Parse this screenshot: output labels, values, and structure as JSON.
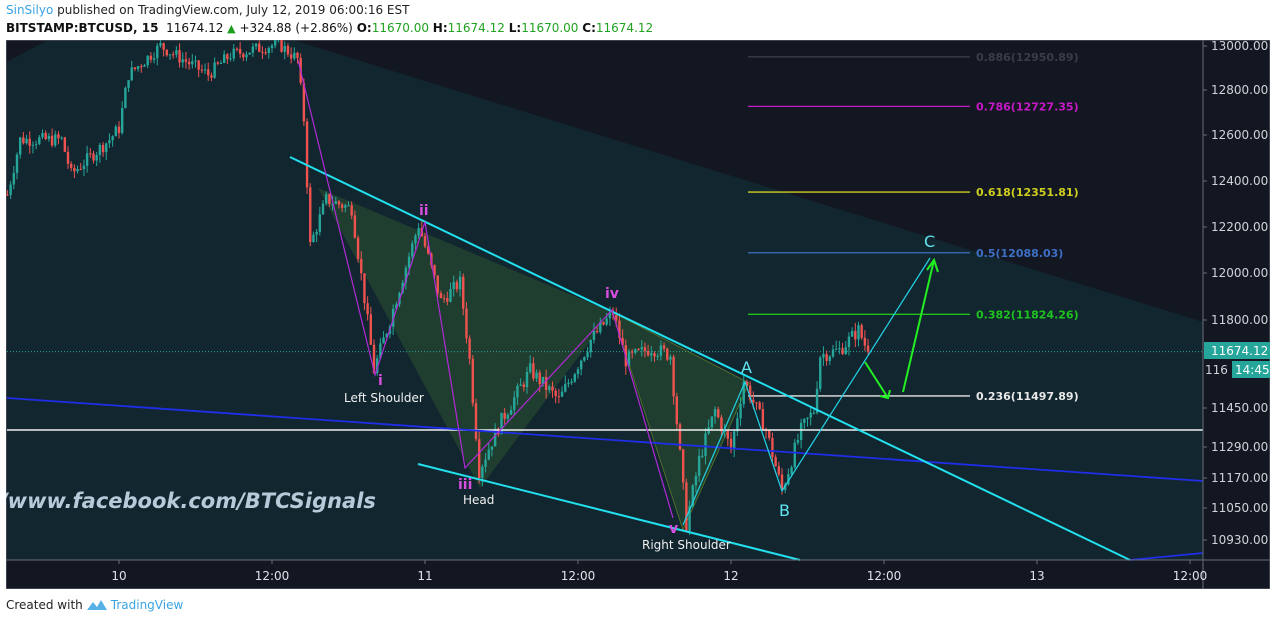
{
  "header": {
    "author": "SinSilyo",
    "published_text": "published on TradingView.com, July 12, 2019 06:00:16 EST",
    "symbol": "BITSTAMP:BTCUSD, 15",
    "last": "11674.12",
    "change": "+324.88 (+2.86%)",
    "o_label": "O:",
    "o": "11670.00",
    "h_label": "H:",
    "h": "11674.12",
    "l_label": "L:",
    "l": "11670.00",
    "c_label": "C:",
    "c": "11674.12",
    "change_icon": "triangle-up-icon"
  },
  "footer": {
    "created_with": "Created with",
    "brand": "TradingView",
    "logo_icon": "tradingview-logo-icon"
  },
  "chart_data": {
    "type": "candlestick",
    "symbol": "BITSTAMP:BTCUSD",
    "interval_minutes": 15,
    "y_ticks": [
      "13000.00",
      "12800.00",
      "12600.00",
      "12400.00",
      "12200.00",
      "12000.00",
      "11800.00",
      "11450.00",
      "11290.00",
      "11170.00",
      "11050.00",
      "10930.00"
    ],
    "x_ticks": [
      "10",
      "12:00",
      "11",
      "12:00",
      "12",
      "12:00",
      "13",
      "12:00"
    ],
    "last_price": "11674.12",
    "countdown": "14:45",
    "hidden_axis_label": "116",
    "colors": {
      "up": "#26a69a",
      "down": "#ef5350",
      "background": "#131722",
      "band": "#12262f",
      "trend": "#00e5ff",
      "wave": "#b02ad6"
    },
    "price_path": [
      [
        "2019-07-09 15:15",
        12340
      ],
      [
        "2019-07-09 16:15",
        12580
      ],
      [
        "2019-07-09 19:30",
        12580
      ],
      [
        "2019-07-09 20:15",
        12430
      ],
      [
        "2019-07-09 23:15",
        12580
      ],
      [
        "2019-07-10 00:00",
        12630
      ],
      [
        "2019-07-10 00:45",
        12870
      ],
      [
        "2019-07-10 03:15",
        13000
      ],
      [
        "2019-07-10 07:00",
        12870
      ],
      [
        "2019-07-10 08:45",
        12960
      ],
      [
        "2019-07-10 12:30",
        13010
      ],
      [
        "2019-07-10 14:00",
        12940
      ],
      [
        "2019-07-10 14:30",
        12670
      ],
      [
        "2019-07-10 15:00",
        12120
      ],
      [
        "2019-07-10 16:15",
        12320
      ],
      [
        "2019-07-10 18:15",
        12280
      ],
      [
        "2019-07-10 20:00",
        11600
      ],
      [
        "2019-07-10 21:15",
        11800
      ],
      [
        "2019-07-10 23:30",
        12210
      ],
      [
        "2019-07-11 01:15",
        11880
      ],
      [
        "2019-07-11 02:45",
        11960
      ],
      [
        "2019-07-11 03:30",
        11640
      ],
      [
        "2019-07-11 04:15",
        11200
      ],
      [
        "2019-07-11 06:00",
        11400
      ],
      [
        "2019-07-11 08:15",
        11600
      ],
      [
        "2019-07-11 10:30",
        11480
      ],
      [
        "2019-07-11 13:00",
        11720
      ],
      [
        "2019-07-11 14:45",
        11830
      ],
      [
        "2019-07-11 15:45",
        11640
      ],
      [
        "2019-07-11 17:45",
        11690
      ],
      [
        "2019-07-11 19:15",
        11660
      ],
      [
        "2019-07-11 20:30",
        10990
      ],
      [
        "2019-07-11 21:30",
        11240
      ],
      [
        "2019-07-11 22:45",
        11440
      ],
      [
        "2019-07-12 00:00",
        11280
      ],
      [
        "2019-07-12 01:00",
        11560
      ],
      [
        "2019-07-12 02:45",
        11360
      ],
      [
        "2019-07-12 04:00",
        11120
      ],
      [
        "2019-07-12 05:30",
        11360
      ],
      [
        "2019-07-12 06:30",
        11440
      ],
      [
        "2019-07-12 07:00",
        11660
      ],
      [
        "2019-07-12 08:30",
        11680
      ],
      [
        "2019-07-12 10:00",
        11760
      ],
      [
        "2019-07-12 10:45",
        11674.12
      ]
    ],
    "fib_levels": [
      {
        "label": "0.886(12950.89)",
        "price": 12950.89,
        "color": "#3a3d45"
      },
      {
        "label": "0.786(12727.35)",
        "price": 12727.35,
        "color": "#c718c7"
      },
      {
        "label": "0.618(12351.81)",
        "price": 12351.81,
        "color": "#cfcf1e"
      },
      {
        "label": "0.5(12088.03)",
        "price": 12088.03,
        "color": "#3d6fc4"
      },
      {
        "label": "0.382(11824.26)",
        "price": 11824.26,
        "color": "#1fc21f"
      },
      {
        "label": "0.236(11497.89)",
        "price": 11497.89,
        "color": "#e8e8e8"
      }
    ],
    "wave_labels": [
      "i",
      "ii",
      "iii",
      "iv",
      "v"
    ],
    "pattern_labels": [
      "Left Shoulder",
      "Head",
      "Right Shoulder"
    ],
    "abc_labels": [
      "A",
      "B",
      "C"
    ],
    "watermark": "/www.facebook.com/BTCSignals"
  }
}
